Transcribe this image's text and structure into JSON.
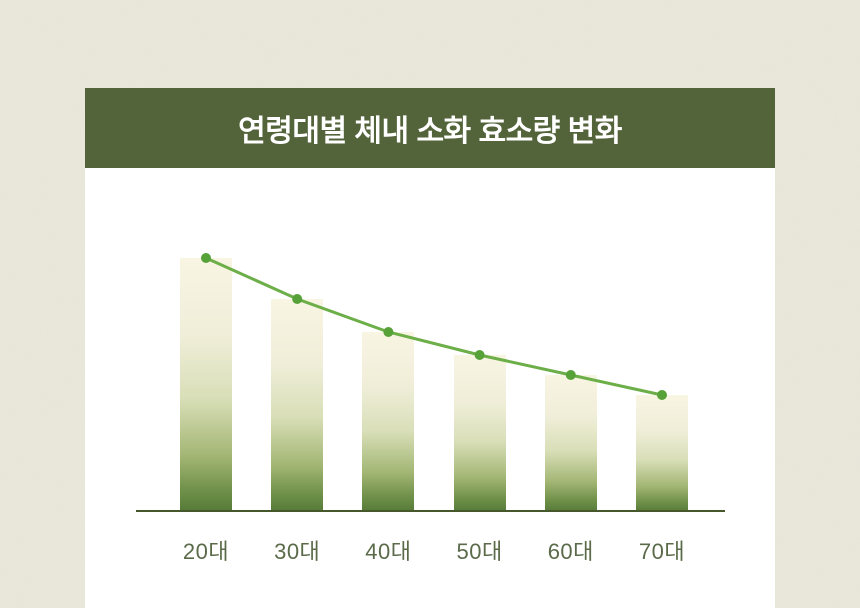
{
  "page": {
    "background_color": "#eae7db",
    "card_background": "#ffffff"
  },
  "header": {
    "title": "연령대별 체내 소화 효소량 변화",
    "background_color": "#53633a",
    "text_color": "#ffffff"
  },
  "chart_data": {
    "type": "bar",
    "overlay": "line-with-markers",
    "categories": [
      "20대",
      "30대",
      "40대",
      "50대",
      "60대",
      "70대"
    ],
    "values": [
      100,
      84,
      71,
      62,
      54,
      46
    ],
    "values_note": "relative enzyme amount estimated from bar heights; no numeric labels shown in image",
    "title": "연령대별 체내 소화 효소량 변화",
    "xlabel": "",
    "ylabel": "",
    "ylim": [
      0,
      100
    ],
    "grid": false,
    "legend": false,
    "colors": {
      "bar_gradient_top": "#f8f5e3",
      "bar_gradient_bottom": "#557a38",
      "line": "#6cae47",
      "marker": "#57a139",
      "axis_line": "#46572c",
      "tick_label": "#5b6b4a"
    }
  }
}
